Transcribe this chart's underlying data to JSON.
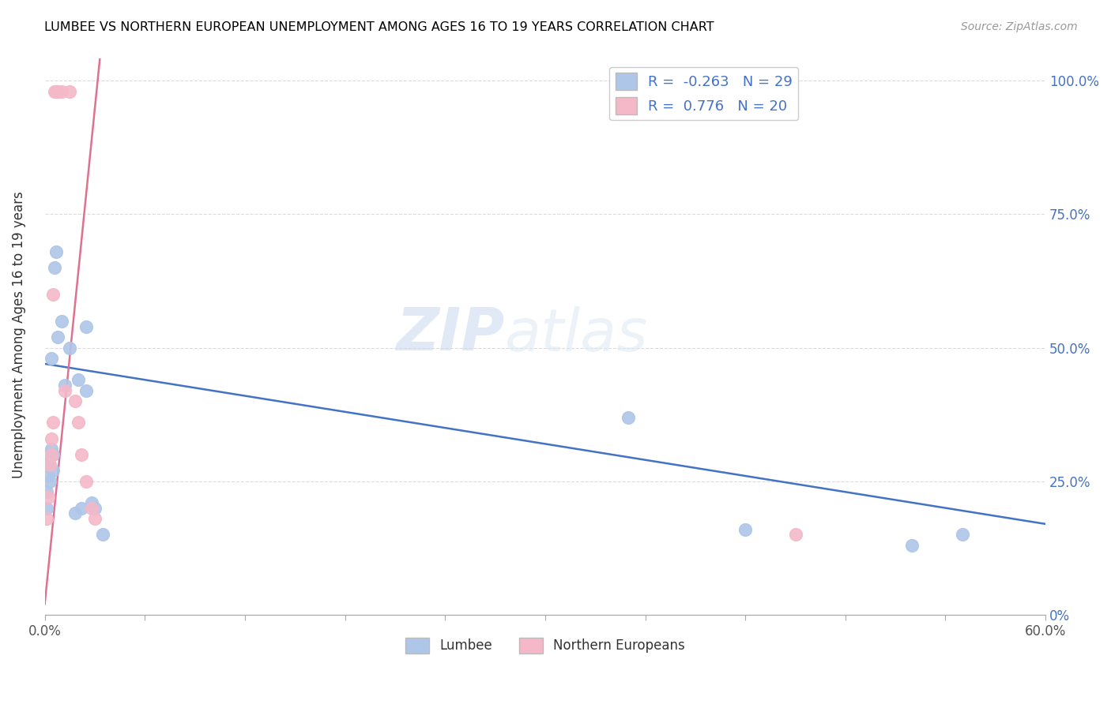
{
  "title": "LUMBEE VS NORTHERN EUROPEAN UNEMPLOYMENT AMONG AGES 16 TO 19 YEARS CORRELATION CHART",
  "source": "Source: ZipAtlas.com",
  "ylabel": "Unemployment Among Ages 16 to 19 years",
  "xmin": 0.0,
  "xmax": 0.6,
  "ymin": 0.0,
  "ymax": 1.05,
  "lumbee_R": -0.263,
  "lumbee_N": 29,
  "northern_R": 0.776,
  "northern_N": 20,
  "lumbee_color": "#aec6e8",
  "northern_color": "#f4b8c8",
  "lumbee_line_color": "#4472c4",
  "northern_line_color": "#e07090",
  "watermark_zip": "ZIP",
  "watermark_atlas": "atlas",
  "lumbee_points_x": [
    0.001,
    0.001,
    0.002,
    0.002,
    0.003,
    0.003,
    0.003,
    0.004,
    0.004,
    0.005,
    0.005,
    0.006,
    0.007,
    0.008,
    0.01,
    0.012,
    0.015,
    0.018,
    0.02,
    0.022,
    0.025,
    0.025,
    0.028,
    0.03,
    0.035,
    0.35,
    0.42,
    0.52,
    0.55
  ],
  "lumbee_points_y": [
    0.2,
    0.23,
    0.26,
    0.29,
    0.25,
    0.28,
    0.3,
    0.48,
    0.31,
    0.3,
    0.27,
    0.65,
    0.68,
    0.52,
    0.55,
    0.43,
    0.5,
    0.19,
    0.44,
    0.2,
    0.42,
    0.54,
    0.21,
    0.2,
    0.15,
    0.37,
    0.16,
    0.13,
    0.15
  ],
  "northern_points_x": [
    0.001,
    0.002,
    0.003,
    0.004,
    0.004,
    0.005,
    0.005,
    0.006,
    0.007,
    0.008,
    0.01,
    0.012,
    0.015,
    0.018,
    0.02,
    0.022,
    0.025,
    0.028,
    0.03,
    0.45
  ],
  "northern_points_y": [
    0.18,
    0.22,
    0.28,
    0.3,
    0.33,
    0.36,
    0.6,
    0.98,
    0.98,
    0.98,
    0.98,
    0.42,
    0.98,
    0.4,
    0.36,
    0.3,
    0.25,
    0.2,
    0.18,
    0.15
  ],
  "lumbee_trend_x": [
    0.0,
    0.6
  ],
  "lumbee_trend_y": [
    0.47,
    0.17
  ],
  "northern_trend_x": [
    0.0,
    0.033
  ],
  "northern_trend_y": [
    0.02,
    1.04
  ],
  "xticks": [
    0.0,
    0.06,
    0.12,
    0.18,
    0.24,
    0.3,
    0.36,
    0.42,
    0.48,
    0.54,
    0.6
  ],
  "yticks": [
    0.0,
    0.25,
    0.5,
    0.75,
    1.0
  ],
  "ytick_labels_right": [
    "0%",
    "25.0%",
    "50.0%",
    "75.0%",
    "100.0%"
  ]
}
